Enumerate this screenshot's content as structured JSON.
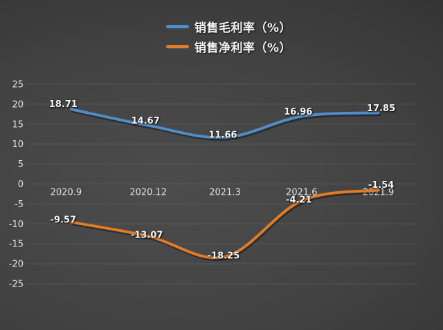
{
  "legend": {
    "items": [
      {
        "label": "销售毛利率（%）",
        "color": "#4f8dc9"
      },
      {
        "label": "销售净利率（%）",
        "color": "#e07b28"
      }
    ]
  },
  "chart_data": {
    "type": "line",
    "smooth": true,
    "grid": true,
    "legend_position": "top-center",
    "categories": [
      "2020.9",
      "2020.12",
      "2021.3",
      "2021.6",
      "2021.9"
    ],
    "series": [
      {
        "name": "销售毛利率（%）",
        "color": "#4f8dc9",
        "values": [
          18.71,
          14.67,
          11.66,
          16.96,
          17.85
        ],
        "labels": [
          "18.71",
          "14.67",
          "11.66",
          "16.96",
          "17.85"
        ]
      },
      {
        "name": "销售净利率（%）",
        "color": "#e07b28",
        "values": [
          -9.57,
          -13.07,
          -18.25,
          -4.21,
          -1.54
        ],
        "labels": [
          "-9.57",
          "-13.07",
          "-18.25",
          "-4.21",
          "-1.54"
        ]
      }
    ],
    "y_ticks": [
      25,
      20,
      15,
      10,
      5,
      0,
      -5,
      -10,
      -15,
      -20,
      -25
    ],
    "ylim": [
      -25,
      25
    ],
    "xlabel": "",
    "ylabel": "",
    "title": ""
  },
  "colors": {
    "background_center": "#4c4c4c",
    "background_edge": "#232323",
    "gridline": "#8a8a8a",
    "tick_text": "#e2e2e2",
    "data_label_text": "#f6f6f6"
  }
}
